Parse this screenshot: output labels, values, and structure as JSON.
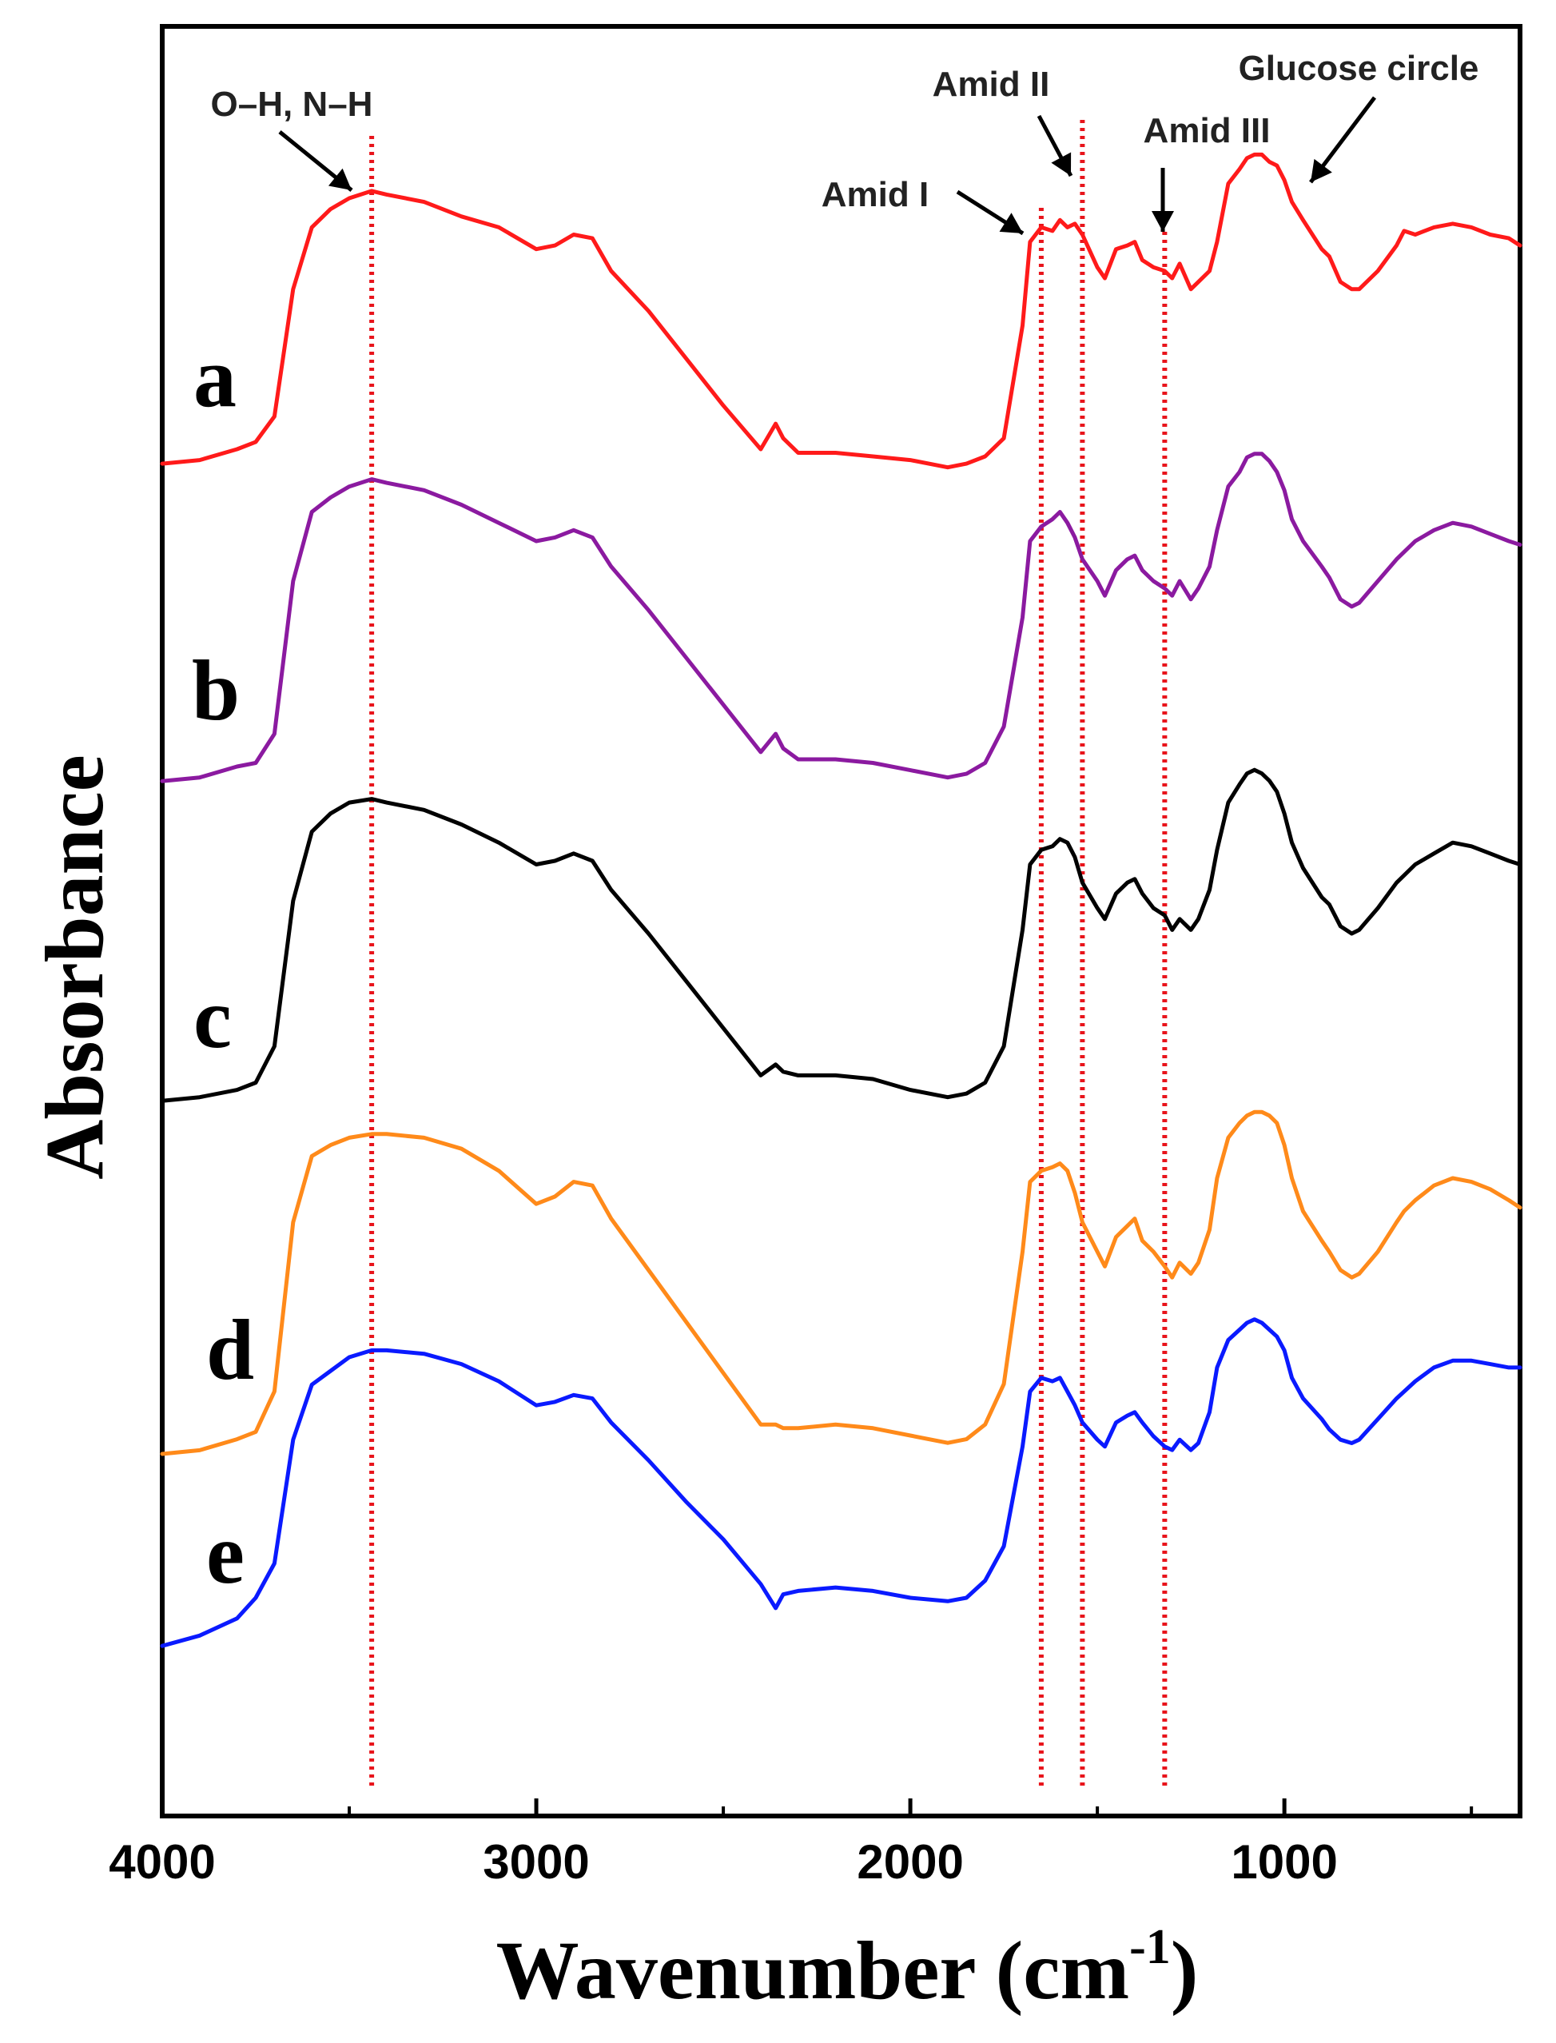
{
  "chart_data": {
    "type": "line",
    "title": "",
    "xlabel": "Wavenumber",
    "xlabel_unit": "cm",
    "xlabel_unit_exponent": "-1",
    "ylabel": "Absorbance",
    "xlim": [
      4000,
      370
    ],
    "x_reversed": true,
    "x_ticks": [
      4000,
      3000,
      2000,
      1000
    ],
    "y_ticks_shown": false,
    "grid": false,
    "reference_lines": [
      {
        "x": 3440,
        "color": "#e8141b",
        "style": "dotted"
      },
      {
        "x": 1650,
        "color": "#e8141b",
        "style": "dotted"
      },
      {
        "x": 1540,
        "color": "#e8141b",
        "style": "dotted"
      },
      {
        "x": 1320,
        "color": "#e8141b",
        "style": "dotted"
      }
    ],
    "annotations": [
      {
        "text": "O–H, N–H",
        "x": 3440
      },
      {
        "text": "Amid I",
        "x": 1650
      },
      {
        "text": "Amid II",
        "x": 1560
      },
      {
        "text": "Amid III",
        "x": 1330
      },
      {
        "text": "Glucose circle",
        "x": 980
      }
    ],
    "series": [
      {
        "name": "a",
        "color": "#ff1a1a",
        "x": [
          4000,
          3900,
          3800,
          3750,
          3700,
          3650,
          3600,
          3550,
          3500,
          3440,
          3400,
          3300,
          3200,
          3100,
          3000,
          2950,
          2900,
          2850,
          2800,
          2700,
          2600,
          2500,
          2400,
          2360,
          2340,
          2300,
          2200,
          2100,
          2000,
          1900,
          1850,
          1800,
          1750,
          1700,
          1680,
          1650,
          1620,
          1600,
          1580,
          1560,
          1540,
          1500,
          1480,
          1450,
          1420,
          1400,
          1380,
          1350,
          1320,
          1300,
          1280,
          1250,
          1230,
          1200,
          1180,
          1150,
          1120,
          1100,
          1080,
          1060,
          1040,
          1020,
          1000,
          980,
          950,
          900,
          880,
          850,
          820,
          800,
          750,
          700,
          680,
          650,
          600,
          550,
          500,
          450,
          400,
          370
        ],
        "y": [
          0.07,
          0.08,
          0.11,
          0.13,
          0.2,
          0.55,
          0.72,
          0.77,
          0.8,
          0.82,
          0.81,
          0.79,
          0.75,
          0.72,
          0.66,
          0.67,
          0.7,
          0.69,
          0.6,
          0.49,
          0.36,
          0.23,
          0.11,
          0.18,
          0.14,
          0.1,
          0.1,
          0.09,
          0.08,
          0.06,
          0.07,
          0.09,
          0.14,
          0.45,
          0.68,
          0.72,
          0.71,
          0.74,
          0.72,
          0.73,
          0.7,
          0.61,
          0.58,
          0.66,
          0.67,
          0.68,
          0.63,
          0.61,
          0.6,
          0.58,
          0.62,
          0.55,
          0.57,
          0.6,
          0.68,
          0.84,
          0.88,
          0.91,
          0.92,
          0.92,
          0.9,
          0.89,
          0.85,
          0.79,
          0.74,
          0.66,
          0.64,
          0.57,
          0.55,
          0.55,
          0.6,
          0.67,
          0.71,
          0.7,
          0.72,
          0.73,
          0.72,
          0.7,
          0.69,
          0.67
        ]
      },
      {
        "name": "b",
        "color": "#8b1aa0",
        "x": [
          4000,
          3900,
          3800,
          3750,
          3700,
          3650,
          3600,
          3550,
          3500,
          3440,
          3400,
          3300,
          3200,
          3100,
          3000,
          2950,
          2900,
          2850,
          2800,
          2700,
          2600,
          2500,
          2400,
          2360,
          2340,
          2300,
          2200,
          2100,
          2000,
          1900,
          1850,
          1800,
          1750,
          1700,
          1680,
          1650,
          1620,
          1600,
          1580,
          1560,
          1540,
          1500,
          1480,
          1450,
          1420,
          1400,
          1380,
          1350,
          1320,
          1300,
          1280,
          1250,
          1230,
          1200,
          1180,
          1150,
          1120,
          1100,
          1080,
          1060,
          1040,
          1020,
          1000,
          980,
          950,
          900,
          880,
          850,
          820,
          800,
          750,
          700,
          680,
          650,
          600,
          550,
          500,
          450,
          400,
          370
        ],
        "y": [
          0.05,
          0.06,
          0.09,
          0.1,
          0.18,
          0.6,
          0.79,
          0.83,
          0.86,
          0.88,
          0.87,
          0.85,
          0.81,
          0.76,
          0.71,
          0.72,
          0.74,
          0.72,
          0.64,
          0.52,
          0.39,
          0.26,
          0.13,
          0.18,
          0.14,
          0.11,
          0.11,
          0.1,
          0.08,
          0.06,
          0.07,
          0.1,
          0.2,
          0.5,
          0.71,
          0.75,
          0.77,
          0.79,
          0.76,
          0.72,
          0.66,
          0.6,
          0.56,
          0.63,
          0.66,
          0.67,
          0.63,
          0.6,
          0.58,
          0.56,
          0.6,
          0.55,
          0.58,
          0.64,
          0.74,
          0.86,
          0.9,
          0.94,
          0.95,
          0.95,
          0.93,
          0.9,
          0.85,
          0.77,
          0.71,
          0.64,
          0.61,
          0.55,
          0.53,
          0.54,
          0.6,
          0.66,
          0.68,
          0.71,
          0.74,
          0.76,
          0.75,
          0.73,
          0.71,
          0.7
        ]
      },
      {
        "name": "c",
        "color": "#000000",
        "x": [
          4000,
          3900,
          3800,
          3750,
          3700,
          3650,
          3600,
          3550,
          3500,
          3440,
          3400,
          3300,
          3200,
          3100,
          3000,
          2950,
          2900,
          2850,
          2800,
          2700,
          2600,
          2500,
          2400,
          2360,
          2340,
          2300,
          2200,
          2100,
          2000,
          1900,
          1850,
          1800,
          1750,
          1700,
          1680,
          1650,
          1620,
          1600,
          1580,
          1560,
          1540,
          1500,
          1480,
          1450,
          1420,
          1400,
          1380,
          1350,
          1320,
          1300,
          1280,
          1250,
          1230,
          1200,
          1180,
          1150,
          1120,
          1100,
          1080,
          1060,
          1040,
          1020,
          1000,
          980,
          950,
          900,
          880,
          850,
          820,
          800,
          750,
          700,
          680,
          650,
          600,
          550,
          500,
          450,
          400,
          370
        ],
        "y": [
          0.05,
          0.06,
          0.08,
          0.1,
          0.2,
          0.6,
          0.79,
          0.84,
          0.87,
          0.88,
          0.87,
          0.85,
          0.81,
          0.76,
          0.7,
          0.71,
          0.73,
          0.71,
          0.63,
          0.51,
          0.38,
          0.25,
          0.12,
          0.15,
          0.13,
          0.12,
          0.12,
          0.11,
          0.08,
          0.06,
          0.07,
          0.1,
          0.2,
          0.52,
          0.7,
          0.74,
          0.75,
          0.77,
          0.76,
          0.72,
          0.65,
          0.58,
          0.55,
          0.62,
          0.65,
          0.66,
          0.62,
          0.58,
          0.56,
          0.52,
          0.55,
          0.52,
          0.55,
          0.63,
          0.74,
          0.87,
          0.92,
          0.95,
          0.96,
          0.95,
          0.93,
          0.9,
          0.84,
          0.76,
          0.69,
          0.61,
          0.59,
          0.53,
          0.51,
          0.52,
          0.58,
          0.65,
          0.67,
          0.7,
          0.73,
          0.76,
          0.75,
          0.73,
          0.71,
          0.7
        ]
      },
      {
        "name": "d",
        "color": "#ff8a1a",
        "x": [
          4000,
          3900,
          3800,
          3750,
          3700,
          3650,
          3600,
          3550,
          3500,
          3440,
          3400,
          3300,
          3200,
          3100,
          3000,
          2950,
          2900,
          2850,
          2800,
          2700,
          2600,
          2500,
          2400,
          2360,
          2340,
          2300,
          2200,
          2100,
          2000,
          1900,
          1850,
          1800,
          1750,
          1700,
          1680,
          1650,
          1620,
          1600,
          1580,
          1560,
          1540,
          1500,
          1480,
          1450,
          1420,
          1400,
          1380,
          1350,
          1320,
          1300,
          1280,
          1250,
          1230,
          1200,
          1180,
          1150,
          1120,
          1100,
          1080,
          1060,
          1040,
          1020,
          1000,
          980,
          950,
          900,
          880,
          850,
          820,
          800,
          750,
          700,
          680,
          650,
          600,
          550,
          500,
          450,
          400,
          370
        ],
        "y": [
          0.05,
          0.06,
          0.09,
          0.11,
          0.22,
          0.68,
          0.86,
          0.89,
          0.91,
          0.92,
          0.92,
          0.91,
          0.88,
          0.82,
          0.73,
          0.75,
          0.79,
          0.78,
          0.69,
          0.55,
          0.41,
          0.27,
          0.13,
          0.13,
          0.12,
          0.12,
          0.13,
          0.12,
          0.1,
          0.08,
          0.09,
          0.13,
          0.24,
          0.6,
          0.79,
          0.82,
          0.83,
          0.84,
          0.82,
          0.76,
          0.68,
          0.6,
          0.56,
          0.64,
          0.67,
          0.69,
          0.63,
          0.6,
          0.56,
          0.53,
          0.57,
          0.54,
          0.57,
          0.66,
          0.8,
          0.91,
          0.95,
          0.97,
          0.98,
          0.98,
          0.97,
          0.95,
          0.89,
          0.8,
          0.71,
          0.63,
          0.6,
          0.55,
          0.53,
          0.54,
          0.6,
          0.68,
          0.71,
          0.74,
          0.78,
          0.8,
          0.79,
          0.77,
          0.74,
          0.72
        ]
      },
      {
        "name": "e",
        "color": "#0a1aff",
        "x": [
          4000,
          3900,
          3800,
          3750,
          3700,
          3650,
          3600,
          3550,
          3500,
          3440,
          3400,
          3300,
          3200,
          3100,
          3000,
          2950,
          2900,
          2850,
          2800,
          2700,
          2600,
          2500,
          2400,
          2360,
          2340,
          2300,
          2200,
          2100,
          2000,
          1900,
          1850,
          1800,
          1750,
          1700,
          1680,
          1650,
          1620,
          1600,
          1580,
          1560,
          1540,
          1500,
          1480,
          1450,
          1420,
          1400,
          1380,
          1350,
          1320,
          1300,
          1280,
          1250,
          1230,
          1200,
          1180,
          1150,
          1120,
          1100,
          1080,
          1060,
          1040,
          1020,
          1000,
          980,
          950,
          900,
          880,
          850,
          820,
          800,
          750,
          700,
          680,
          650,
          600,
          550,
          500,
          450,
          400,
          370
        ],
        "y": [
          0.06,
          0.09,
          0.14,
          0.2,
          0.3,
          0.66,
          0.82,
          0.86,
          0.9,
          0.92,
          0.92,
          0.91,
          0.88,
          0.83,
          0.76,
          0.77,
          0.79,
          0.78,
          0.71,
          0.6,
          0.48,
          0.37,
          0.24,
          0.17,
          0.21,
          0.22,
          0.23,
          0.22,
          0.2,
          0.19,
          0.2,
          0.25,
          0.35,
          0.64,
          0.8,
          0.84,
          0.83,
          0.84,
          0.8,
          0.76,
          0.71,
          0.66,
          0.64,
          0.71,
          0.73,
          0.74,
          0.71,
          0.67,
          0.64,
          0.63,
          0.66,
          0.63,
          0.65,
          0.74,
          0.87,
          0.95,
          0.98,
          1.0,
          1.01,
          1.0,
          0.98,
          0.96,
          0.92,
          0.84,
          0.78,
          0.72,
          0.69,
          0.66,
          0.65,
          0.66,
          0.72,
          0.78,
          0.8,
          0.83,
          0.87,
          0.89,
          0.89,
          0.88,
          0.87,
          0.87
        ]
      }
    ]
  }
}
